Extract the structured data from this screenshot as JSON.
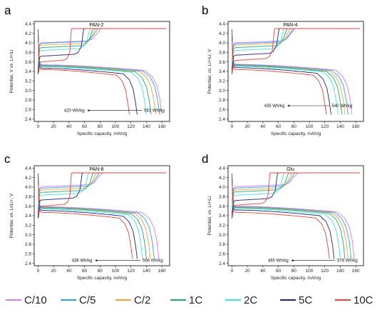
{
  "colors": {
    "C/10": "#d37bf0",
    "C/5": "#2aa2e6",
    "C/2": "#f2a23c",
    "1C": "#20a876",
    "2C": "#3fe3e3",
    "5C": "#1b237d",
    "10C": "#e8413b"
  },
  "legend": [
    "C/10",
    "C/5",
    "C/2",
    "1C",
    "2C",
    "5C",
    "10C"
  ],
  "chart_data": [
    {
      "type": "line",
      "panel_letter": "a",
      "title": "PAN-2",
      "xlabel": "Specific capacity, mAh/g",
      "ylabel": "Potential, V vs. Li+/Li",
      "xlim": [
        -5,
        170
      ],
      "ylim": [
        2.35,
        4.45
      ],
      "xticks": [
        "0",
        "20",
        "40",
        "60",
        "80",
        "100",
        "120",
        "140",
        "160"
      ],
      "yticks": [
        "2.4",
        "2.6",
        "2.8",
        "3.0",
        "3.2",
        "3.4",
        "3.6",
        "3.8",
        "4.0",
        "4.2",
        "4.4"
      ],
      "annotations": [
        {
          "text": "420 Wh/kg",
          "x": 60,
          "y": 2.55
        },
        {
          "text": "562 Wh/kg",
          "x": 137,
          "y": 2.55
        }
      ],
      "series": [
        {
          "name": "C/10",
          "charge_cap": 82,
          "charge_v": 4.02,
          "discharge_cap": 160,
          "discharge_v": 3.5
        },
        {
          "name": "C/5",
          "charge_cap": 78,
          "charge_v": 4.01,
          "discharge_cap": 157,
          "discharge_v": 3.49
        },
        {
          "name": "C/2",
          "charge_cap": 75,
          "charge_v": 3.97,
          "discharge_cap": 152,
          "discharge_v": 3.48
        },
        {
          "name": "1C",
          "charge_cap": 72,
          "charge_v": 3.92,
          "discharge_cap": 146,
          "discharge_v": 3.47
        },
        {
          "name": "2C",
          "charge_cap": 68,
          "charge_v": 3.86,
          "discharge_cap": 140,
          "discharge_v": 3.46
        },
        {
          "name": "5C",
          "charge_cap": 60,
          "charge_v": 3.74,
          "discharge_cap": 128,
          "discharge_v": 3.43
        },
        {
          "name": "10C",
          "charge_cap": 44,
          "charge_v": 3.62,
          "discharge_cap": 118,
          "discharge_v": 3.4
        }
      ]
    },
    {
      "type": "line",
      "panel_letter": "b",
      "title": "PAN-4",
      "xlabel": "Specific capacity, mAh/g",
      "ylabel": "Potential, vs. Li+/Li, V",
      "xlim": [
        -5,
        170
      ],
      "ylim": [
        2.35,
        4.45
      ],
      "xticks": [
        "0",
        "20",
        "40",
        "60",
        "80",
        "100",
        "120",
        "140",
        "160"
      ],
      "yticks": [
        "2.4",
        "2.6",
        "2.8",
        "3.0",
        "3.2",
        "3.4",
        "3.6",
        "3.8",
        "4.0",
        "4.2",
        "4.4"
      ],
      "annotations": [
        {
          "text": "435 Wh/kg",
          "x": 68,
          "y": 2.65
        },
        {
          "text": "540 Wh/kg",
          "x": 129,
          "y": 2.65
        }
      ],
      "series": [
        {
          "name": "C/10",
          "charge_cap": 82,
          "charge_v": 4.02,
          "discharge_cap": 155,
          "discharge_v": 3.51
        },
        {
          "name": "C/5",
          "charge_cap": 80,
          "charge_v": 4.0,
          "discharge_cap": 150,
          "discharge_v": 3.5
        },
        {
          "name": "C/2",
          "charge_cap": 76,
          "charge_v": 3.97,
          "discharge_cap": 146,
          "discharge_v": 3.49
        },
        {
          "name": "1C",
          "charge_cap": 72,
          "charge_v": 3.92,
          "discharge_cap": 142,
          "discharge_v": 3.48
        },
        {
          "name": "2C",
          "charge_cap": 68,
          "charge_v": 3.86,
          "discharge_cap": 137,
          "discharge_v": 3.47
        },
        {
          "name": "5C",
          "charge_cap": 62,
          "charge_v": 3.76,
          "discharge_cap": 128,
          "discharge_v": 3.44
        },
        {
          "name": "10C",
          "charge_cap": 56,
          "charge_v": 3.65,
          "discharge_cap": 122,
          "discharge_v": 3.4
        }
      ]
    },
    {
      "type": "line",
      "panel_letter": "c",
      "title": "PAN-8",
      "xlabel": "Specific capacity, mAh/g",
      "ylabel": "Potential, vs. Li/Li+, V",
      "xlim": [
        -5,
        170
      ],
      "ylim": [
        2.35,
        4.45
      ],
      "xticks": [
        "0",
        "20",
        "40",
        "60",
        "80",
        "100",
        "120",
        "140",
        "160"
      ],
      "yticks": [
        "2.4",
        "2.6",
        "2.8",
        "3.0",
        "3.2",
        "3.4",
        "3.6",
        "3.8",
        "4.0",
        "4.2",
        "4.4"
      ],
      "annotations": [
        {
          "text": "436 Wh/kg",
          "x": 70,
          "y": 2.43
        },
        {
          "text": "566 Wh/kg",
          "x": 135,
          "y": 2.43
        }
      ],
      "series": [
        {
          "name": "C/10",
          "charge_cap": 84,
          "charge_v": 4.03,
          "discharge_cap": 156,
          "discharge_v": 3.55
        },
        {
          "name": "C/5",
          "charge_cap": 80,
          "charge_v": 4.0,
          "discharge_cap": 150,
          "discharge_v": 3.54
        },
        {
          "name": "C/2",
          "charge_cap": 76,
          "charge_v": 3.96,
          "discharge_cap": 145,
          "discharge_v": 3.53
        },
        {
          "name": "1C",
          "charge_cap": 72,
          "charge_v": 3.91,
          "discharge_cap": 140,
          "discharge_v": 3.52
        },
        {
          "name": "2C",
          "charge_cap": 66,
          "charge_v": 3.85,
          "discharge_cap": 135,
          "discharge_v": 3.5
        },
        {
          "name": "5C",
          "charge_cap": 58,
          "charge_v": 3.75,
          "discharge_cap": 128,
          "discharge_v": 3.47
        },
        {
          "name": "10C",
          "charge_cap": 44,
          "charge_v": 3.62,
          "discharge_cap": 122,
          "discharge_v": 3.43
        }
      ]
    },
    {
      "type": "line",
      "panel_letter": "d",
      "title": "Glu",
      "xlabel": "Specific capacity, mAh/g",
      "ylabel": "Potential, vs. Li+/Li",
      "xlim": [
        -5,
        170
      ],
      "ylim": [
        2.35,
        4.45
      ],
      "xticks": [
        "0",
        "20",
        "40",
        "60",
        "80",
        "100",
        "120",
        "140",
        "160"
      ],
      "yticks": [
        "2.4",
        "2.6",
        "2.8",
        "3.0",
        "3.2",
        "3.4",
        "3.6",
        "3.8",
        "4.0",
        "4.2",
        "4.4"
      ],
      "annotations": [
        {
          "text": "460 Wh/kg",
          "x": 73,
          "y": 2.43
        },
        {
          "text": "578 Wh/kg",
          "x": 136,
          "y": 2.43
        }
      ],
      "series": [
        {
          "name": "C/10",
          "charge_cap": 86,
          "charge_v": 4.03,
          "discharge_cap": 158,
          "discharge_v": 3.56
        },
        {
          "name": "C/5",
          "charge_cap": 82,
          "charge_v": 4.0,
          "discharge_cap": 154,
          "discharge_v": 3.55
        },
        {
          "name": "C/2",
          "charge_cap": 78,
          "charge_v": 3.96,
          "discharge_cap": 150,
          "discharge_v": 3.54
        },
        {
          "name": "1C",
          "charge_cap": 74,
          "charge_v": 3.92,
          "discharge_cap": 146,
          "discharge_v": 3.53
        },
        {
          "name": "2C",
          "charge_cap": 68,
          "charge_v": 3.85,
          "discharge_cap": 140,
          "discharge_v": 3.51
        },
        {
          "name": "5C",
          "charge_cap": 60,
          "charge_v": 3.74,
          "discharge_cap": 132,
          "discharge_v": 3.48
        },
        {
          "name": "10C",
          "charge_cap": 50,
          "charge_v": 3.64,
          "discharge_cap": 126,
          "discharge_v": 3.43
        }
      ]
    }
  ]
}
